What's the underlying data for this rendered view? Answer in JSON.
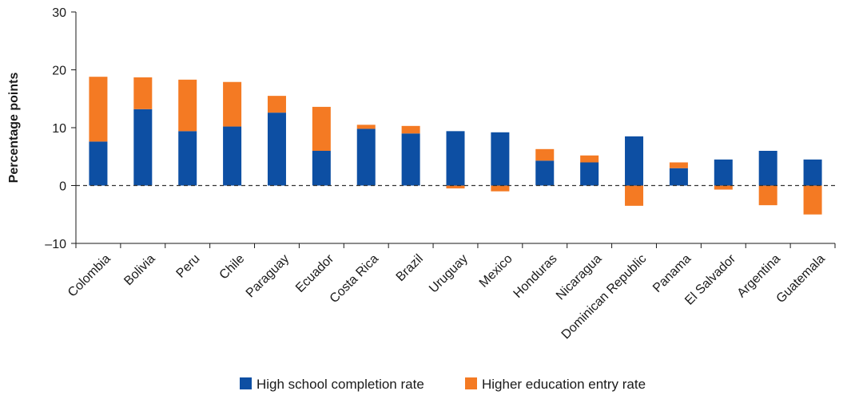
{
  "chart_data": {
    "type": "bar",
    "stacked": true,
    "title": "",
    "xlabel": "",
    "ylabel": "Percentage points",
    "ylim": [
      -10,
      30
    ],
    "yticks": [
      -10,
      0,
      10,
      20,
      30
    ],
    "ytick_labels": [
      "–10",
      "0",
      "10",
      "20",
      "30"
    ],
    "zero_line": "dashed",
    "grid": false,
    "legend_position": "bottom-center",
    "categories": [
      "Colombia",
      "Bolivia",
      "Peru",
      "Chile",
      "Paraguay",
      "Ecuador",
      "Costa Rica",
      "Brazil",
      "Uruguay",
      "Mexico",
      "Honduras",
      "Nicaragua",
      "Dominican Republic",
      "Panama",
      "El Salvador",
      "Argentina",
      "Guatemala"
    ],
    "series": [
      {
        "name": "High school completion rate",
        "color": "#0d4fa3",
        "values": [
          7.6,
          13.2,
          9.4,
          10.2,
          12.6,
          6.0,
          9.8,
          9.0,
          9.4,
          9.2,
          4.3,
          4.0,
          8.5,
          3.0,
          4.5,
          6.0,
          4.5
        ]
      },
      {
        "name": "Higher education entry rate",
        "color": "#f47a23",
        "values": [
          11.2,
          5.5,
          8.9,
          7.7,
          2.9,
          7.6,
          0.7,
          1.3,
          -0.5,
          -1.0,
          2.0,
          1.2,
          -3.5,
          1.0,
          -0.7,
          -3.4,
          -5.0
        ]
      }
    ]
  }
}
